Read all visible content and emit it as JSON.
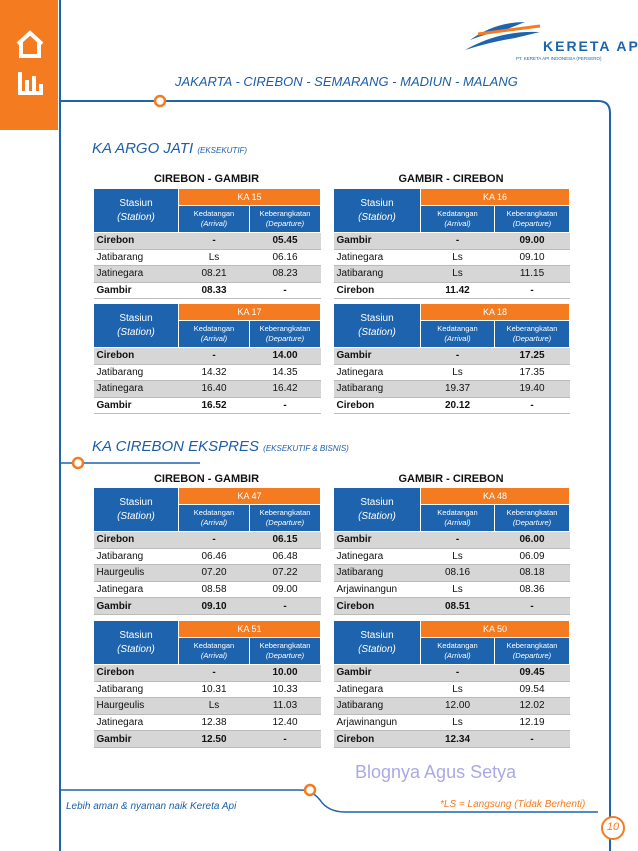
{
  "header": {
    "logo_title": "KERETA API",
    "logo_subtitle": "PT. KERETA API INDONESIA (PERSERO)",
    "route": "JAKARTA - CIREBON - SEMARANG - MADIUN - MALANG"
  },
  "columns": {
    "station": "Stasiun",
    "station_en": "(Station)",
    "arrival": "Kedatangan",
    "arrival_en": "(Arrival)",
    "departure": "Keberangkatan",
    "departure_en": "(Departure)"
  },
  "sections": [
    {
      "name": "KA ARGO JATI",
      "class": "(EKSEKUTIF)",
      "directions": [
        "CIREBON - GAMBIR",
        "GAMBIR - CIREBON"
      ],
      "tables": [
        {
          "train": "KA 15",
          "rows": [
            [
              "Cirebon",
              "-",
              "05.45"
            ],
            [
              "Jatibarang",
              "Ls",
              "06.16"
            ],
            [
              "Jatinegara",
              "08.21",
              "08.23"
            ],
            [
              "Gambir",
              "08.33",
              "-"
            ]
          ]
        },
        {
          "train": "KA 16",
          "rows": [
            [
              "Gambir",
              "-",
              "09.00"
            ],
            [
              "Jatinegara",
              "Ls",
              "09.10"
            ],
            [
              "Jatibarang",
              "Ls",
              "11.15"
            ],
            [
              "Cirebon",
              "11.42",
              "-"
            ]
          ]
        },
        {
          "train": "KA 17",
          "rows": [
            [
              "Cirebon",
              "-",
              "14.00"
            ],
            [
              "Jatibarang",
              "14.32",
              "14.35"
            ],
            [
              "Jatinegara",
              "16.40",
              "16.42"
            ],
            [
              "Gambir",
              "16.52",
              "-"
            ]
          ]
        },
        {
          "train": "KA 18",
          "rows": [
            [
              "Gambir",
              "-",
              "17.25"
            ],
            [
              "Jatinegara",
              "Ls",
              "17.35"
            ],
            [
              "Jatibarang",
              "19.37",
              "19.40"
            ],
            [
              "Cirebon",
              "20.12",
              "-"
            ]
          ]
        }
      ]
    },
    {
      "name": "KA CIREBON EKSPRES",
      "class": "(EKSEKUTIF & BISNIS)",
      "directions": [
        "CIREBON - GAMBIR",
        "GAMBIR - CIREBON"
      ],
      "tables": [
        {
          "train": "KA 47",
          "rows": [
            [
              "Cirebon",
              "-",
              "06.15"
            ],
            [
              "Jatibarang",
              "06.46",
              "06.48"
            ],
            [
              "Haurgeulis",
              "07.20",
              "07.22"
            ],
            [
              "Jatinegara",
              "08.58",
              "09.00"
            ],
            [
              "Gambir",
              "09.10",
              "-"
            ]
          ]
        },
        {
          "train": "KA 48",
          "rows": [
            [
              "Gambir",
              "-",
              "06.00"
            ],
            [
              "Jatinegara",
              "Ls",
              "06.09"
            ],
            [
              "Jatibarang",
              "08.16",
              "08.18"
            ],
            [
              "Arjawinangun",
              "Ls",
              "08.36"
            ],
            [
              "Cirebon",
              "08.51",
              "-"
            ]
          ]
        },
        {
          "train": "KA 51",
          "rows": [
            [
              "Cirebon",
              "-",
              "10.00"
            ],
            [
              "Jatibarang",
              "10.31",
              "10.33"
            ],
            [
              "Haurgeulis",
              "Ls",
              "11.03"
            ],
            [
              "Jatinegara",
              "12.38",
              "12.40"
            ],
            [
              "Gambir",
              "12.50",
              "-"
            ]
          ]
        },
        {
          "train": "KA 50",
          "rows": [
            [
              "Gambir",
              "-",
              "09.45"
            ],
            [
              "Jatinegara",
              "Ls",
              "09.54"
            ],
            [
              "Jatibarang",
              "12.00",
              "12.02"
            ],
            [
              "Arjawinangun",
              "Ls",
              "12.19"
            ],
            [
              "Cirebon",
              "12.34",
              "-"
            ]
          ]
        }
      ]
    }
  ],
  "footer": {
    "watermark": "Blognya Agus Setya",
    "tagline": "Lebih aman & nyaman naik Kereta Api",
    "note": "*LS = Langsung (Tidak Berhenti)",
    "page": "10"
  }
}
